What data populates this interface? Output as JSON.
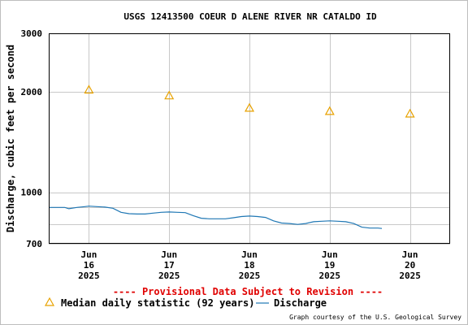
{
  "chart_data": {
    "type": "line",
    "title": "USGS 12413500 COEUR D ALENE RIVER NR CATALDO ID",
    "ylabel": "Discharge, cubic feet per second",
    "xlabel": "",
    "y_scale": "log",
    "ylim": [
      700,
      3000
    ],
    "y_ticks": [
      {
        "value": 700,
        "label": "700"
      },
      {
        "value": 1000,
        "label": "1000"
      },
      {
        "value": 2000,
        "label": "2000"
      },
      {
        "value": 3000,
        "label": "3000"
      }
    ],
    "y_gridlines": [
      700,
      800,
      900,
      1000,
      2000,
      3000
    ],
    "xlim": [
      15.5,
      20.5
    ],
    "x_ticks": [
      {
        "x": 16,
        "lines": [
          "Jun",
          "16",
          "2025"
        ]
      },
      {
        "x": 17,
        "lines": [
          "Jun",
          "17",
          "2025"
        ]
      },
      {
        "x": 18,
        "lines": [
          "Jun",
          "18",
          "2025"
        ]
      },
      {
        "x": 19,
        "lines": [
          "Jun",
          "19",
          "2025"
        ]
      },
      {
        "x": 20,
        "lines": [
          "Jun",
          "20",
          "2025"
        ]
      }
    ],
    "grid": true,
    "series": [
      {
        "name": "Discharge",
        "kind": "line",
        "color": "#1f77b4",
        "x": [
          15.5,
          15.7,
          15.75,
          15.85,
          15.95,
          16.0,
          16.1,
          16.2,
          16.3,
          16.4,
          16.5,
          16.6,
          16.7,
          16.8,
          16.9,
          17.0,
          17.1,
          17.2,
          17.3,
          17.4,
          17.5,
          17.6,
          17.7,
          17.8,
          17.9,
          18.0,
          18.1,
          18.2,
          18.3,
          18.4,
          18.5,
          18.6,
          18.7,
          18.8,
          18.9,
          19.0,
          19.1,
          19.2,
          19.3,
          19.4,
          19.5,
          19.6,
          19.65
        ],
        "values": [
          900,
          900,
          892,
          900,
          905,
          908,
          905,
          902,
          895,
          870,
          862,
          860,
          860,
          865,
          870,
          872,
          870,
          868,
          850,
          835,
          832,
          832,
          832,
          838,
          845,
          848,
          845,
          840,
          820,
          808,
          805,
          800,
          805,
          815,
          818,
          820,
          818,
          815,
          805,
          785,
          780,
          780,
          778
        ]
      },
      {
        "name": "Median daily statistic (92 years)",
        "kind": "marker",
        "color": "#e8a200",
        "x": [
          16,
          17,
          18,
          19,
          20
        ],
        "values": [
          2030,
          1950,
          1790,
          1750,
          1720
        ]
      }
    ],
    "annotations": [
      "---- Provisional Data Subject to Revision ----"
    ],
    "legend": {
      "placement": "bottom-left",
      "items": [
        {
          "label": "Median daily statistic (92 years)",
          "symbol": "triangle-icon"
        },
        {
          "label": "Discharge",
          "symbol": "line-icon"
        }
      ]
    },
    "credit": "Graph courtesy of the U.S. Geological Survey"
  }
}
